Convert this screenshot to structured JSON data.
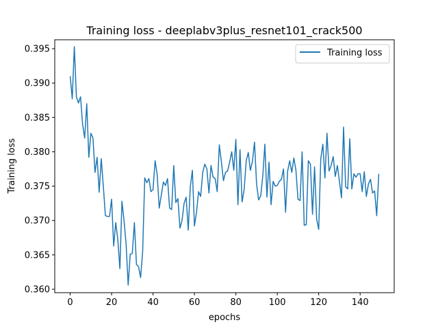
{
  "chart_data": {
    "type": "line",
    "title": "Training loss - deeplabv3plus_resnet101_crack500",
    "xlabel": "epochs",
    "ylabel": "Training loss",
    "xlim": [
      -7.45,
      156.45
    ],
    "ylim": [
      0.3595,
      0.3963
    ],
    "xticks": [
      0,
      20,
      40,
      60,
      80,
      100,
      120,
      140
    ],
    "yticks": [
      0.36,
      0.365,
      0.37,
      0.375,
      0.38,
      0.385,
      0.39,
      0.395
    ],
    "ytick_labels": [
      "0.360",
      "0.365",
      "0.370",
      "0.375",
      "0.380",
      "0.385",
      "0.390",
      "0.395"
    ],
    "grid": false,
    "legend_position": "top-right",
    "series": [
      {
        "name": "Training loss",
        "color": "#1f77b4",
        "x": [
          0,
          1,
          2,
          3,
          4,
          5,
          6,
          7,
          8,
          9,
          10,
          11,
          12,
          13,
          14,
          15,
          16,
          17,
          18,
          19,
          20,
          21,
          22,
          23,
          24,
          25,
          26,
          27,
          28,
          29,
          30,
          31,
          32,
          33,
          34,
          35,
          36,
          37,
          38,
          39,
          40,
          41,
          42,
          43,
          44,
          45,
          46,
          47,
          48,
          49,
          50,
          51,
          52,
          53,
          54,
          55,
          56,
          57,
          58,
          59,
          60,
          61,
          62,
          63,
          64,
          65,
          66,
          67,
          68,
          69,
          70,
          71,
          72,
          73,
          74,
          75,
          76,
          77,
          78,
          79,
          80,
          81,
          82,
          83,
          84,
          85,
          86,
          87,
          88,
          89,
          90,
          91,
          92,
          93,
          94,
          95,
          96,
          97,
          98,
          99,
          100,
          101,
          102,
          103,
          104,
          105,
          106,
          107,
          108,
          109,
          110,
          111,
          112,
          113,
          114,
          115,
          116,
          117,
          118,
          119,
          120,
          121,
          122,
          123,
          124,
          125,
          126,
          127,
          128,
          129,
          130,
          131,
          132,
          133,
          134,
          135,
          136,
          137,
          138,
          139,
          140,
          141,
          142,
          143,
          144,
          145,
          146,
          147,
          148,
          149
        ],
        "values": [
          0.391,
          0.3877,
          0.3953,
          0.388,
          0.3871,
          0.388,
          0.384,
          0.382,
          0.387,
          0.3792,
          0.3827,
          0.382,
          0.377,
          0.3792,
          0.3741,
          0.379,
          0.375,
          0.3707,
          0.3706,
          0.3706,
          0.3731,
          0.3663,
          0.3697,
          0.3672,
          0.363,
          0.3728,
          0.37,
          0.3666,
          0.3606,
          0.3651,
          0.3652,
          0.3697,
          0.3636,
          0.3633,
          0.3617,
          0.3655,
          0.3762,
          0.3755,
          0.3761,
          0.3742,
          0.3745,
          0.3787,
          0.3767,
          0.3718,
          0.3737,
          0.3756,
          0.3751,
          0.3761,
          0.3718,
          0.3716,
          0.378,
          0.3726,
          0.3732,
          0.3689,
          0.37,
          0.3725,
          0.3734,
          0.3686,
          0.3749,
          0.3773,
          0.3692,
          0.3712,
          0.3742,
          0.3735,
          0.377,
          0.3782,
          0.3775,
          0.374,
          0.378,
          0.3763,
          0.3761,
          0.3742,
          0.381,
          0.3786,
          0.3758,
          0.377,
          0.3772,
          0.3785,
          0.38,
          0.3773,
          0.3818,
          0.3723,
          0.3803,
          0.3727,
          0.3745,
          0.3787,
          0.3799,
          0.3773,
          0.3786,
          0.3814,
          0.3753,
          0.373,
          0.3736,
          0.3765,
          0.3811,
          0.3734,
          0.3785,
          0.3723,
          0.3757,
          0.375,
          0.3751,
          0.3757,
          0.376,
          0.3775,
          0.3712,
          0.3772,
          0.3787,
          0.377,
          0.3791,
          0.3773,
          0.3731,
          0.3729,
          0.38,
          0.3693,
          0.3694,
          0.3787,
          0.3782,
          0.3709,
          0.3778,
          0.3702,
          0.3687,
          0.379,
          0.3811,
          0.3762,
          0.3827,
          0.3772,
          0.378,
          0.3793,
          0.3764,
          0.378,
          0.3757,
          0.3733,
          0.3836,
          0.3749,
          0.3746,
          0.3819,
          0.3746,
          0.3768,
          0.3763,
          0.3768,
          0.3768,
          0.3742,
          0.3771,
          0.3735,
          0.3753,
          0.376,
          0.374,
          0.3743,
          0.3707,
          0.3768
        ]
      }
    ]
  }
}
